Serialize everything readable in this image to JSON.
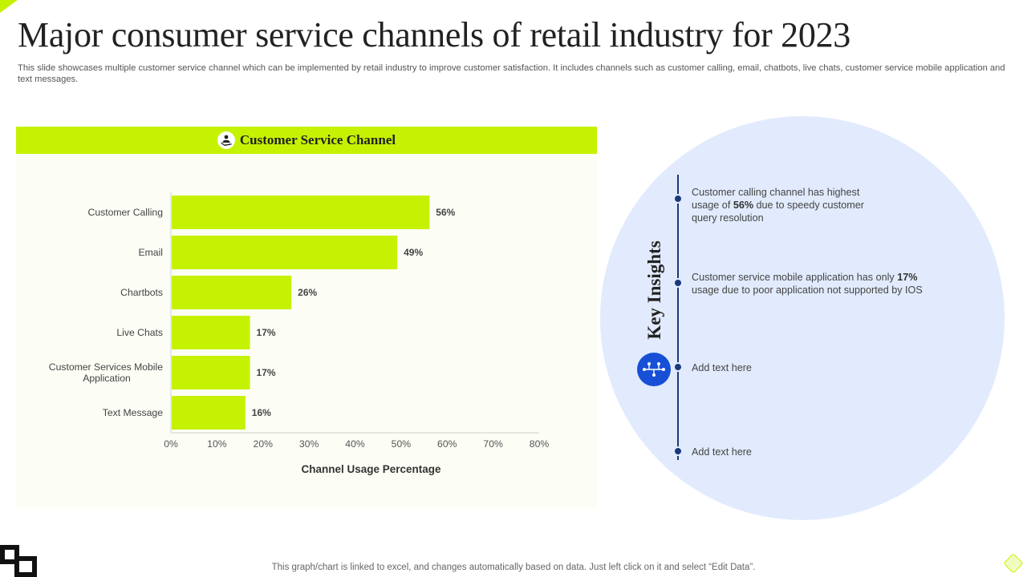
{
  "slide": {
    "title": "Major consumer service channels of retail industry for 2023",
    "subtitle": "This slide showcases multiple customer service channel which can be implemented by retail industry to improve customer satisfaction. It includes channels such as customer calling, email, chatbots, live chats, customer service mobile application and text messages.",
    "footer_note": "This graph/chart is linked to excel,  and changes automatically based on data. Just left click on it and select “Edit Data”."
  },
  "chart_header": "Customer Service Channel",
  "chart_data": {
    "type": "bar",
    "orientation": "horizontal",
    "title": "Customer Service Channel",
    "categories": [
      "Customer Calling",
      "Email",
      "Chartbots",
      "Live Chats",
      "Customer Services Mobile Application",
      "Text Message"
    ],
    "category_lines": [
      [
        "Customer Calling"
      ],
      [
        "Email"
      ],
      [
        "Chartbots"
      ],
      [
        "Live Chats"
      ],
      [
        "Customer Services Mobile",
        "Application"
      ],
      [
        "Text Message"
      ]
    ],
    "values": [
      56,
      49,
      26,
      17,
      17,
      16
    ],
    "value_labels": [
      "56%",
      "49%",
      "26%",
      "17%",
      "17%",
      "16%"
    ],
    "xlabel": "Channel Usage Percentage",
    "ylabel": "",
    "xlim": [
      0,
      80
    ],
    "ticks": [
      0,
      10,
      20,
      30,
      40,
      50,
      60,
      70,
      80
    ],
    "tick_labels": [
      "0%",
      "10%",
      "20%",
      "30%",
      "40%",
      "50%",
      "60%",
      "70%",
      "80%"
    ],
    "grid": false,
    "bar_color": "#c5f200"
  },
  "insights": {
    "heading": "Key Insights",
    "items": [
      {
        "before": "Customer calling channel has highest usage of ",
        "bold": "56%",
        "after": " due to speedy customer query resolution"
      },
      {
        "before": "Customer service  mobile application has only ",
        "bold": "17%",
        "after": " usage due to poor application not supported  by IOS"
      },
      {
        "before": "Add text here",
        "bold": "",
        "after": ""
      },
      {
        "before": "Add text here",
        "bold": "",
        "after": ""
      }
    ]
  },
  "colors": {
    "accent": "#c5f200",
    "circle": "#e1ebfd",
    "timeline": "#1a3a7a",
    "icon_blue": "#1750d6"
  }
}
